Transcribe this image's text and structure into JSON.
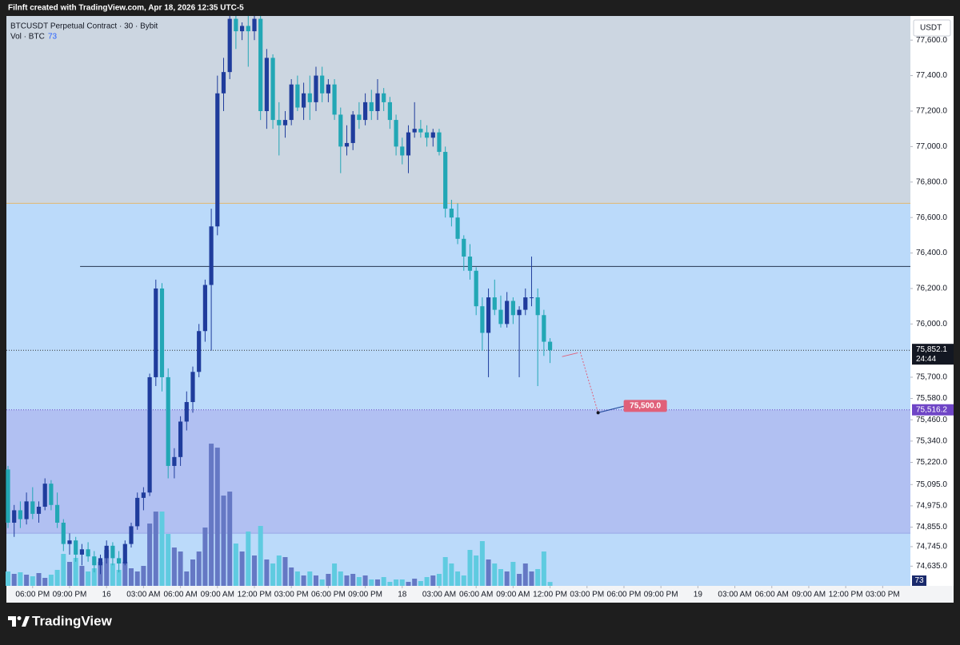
{
  "header": {
    "credit": "Filnft created with TradingView.com, Apr 18, 2026 12:35 UTC-5",
    "symbol": "BTCUSDT Perpetual Contract · 30 · Bybit",
    "volume_label": "Vol · BTC"
  },
  "chart_data": {
    "type": "candlestick",
    "open": [
      75180,
      74880,
      74950,
      74900,
      75000,
      74930,
      74970,
      75100,
      74980,
      74880,
      74760,
      74780,
      74700,
      74730,
      74690,
      74640,
      74680,
      74750,
      74680,
      74650,
      74760,
      74860,
      75020,
      75050,
      75700,
      76200,
      75700,
      75200,
      75250,
      75450,
      75560,
      75730,
      75960,
      76220,
      76550,
      77300,
      77420,
      77720,
      77650,
      77680,
      77650,
      77720,
      77200,
      77500,
      77150,
      77120,
      77150,
      77350,
      77220,
      77300,
      77250,
      77400,
      77300,
      77350,
      77180,
      77000,
      77020,
      77180,
      77150,
      77250,
      77200,
      77300,
      77250,
      77150,
      77000,
      76950,
      77080,
      77100,
      77080,
      77050,
      77080,
      76970,
      76650,
      76600,
      76480,
      76380,
      76300,
      76100,
      75950,
      76150,
      76080,
      76000,
      76130,
      76050,
      76080,
      76150,
      76150,
      76050,
      75900
    ],
    "high": [
      75200,
      74980,
      75000,
      75050,
      75080,
      75000,
      75130,
      75120,
      75050,
      74900,
      74820,
      74800,
      74760,
      74770,
      74720,
      74700,
      74780,
      74770,
      74720,
      74780,
      74880,
      75050,
      75080,
      75720,
      76250,
      76230,
      75750,
      75300,
      75480,
      75620,
      75760,
      76000,
      76250,
      76650,
      77400,
      77500,
      77750,
      77750,
      77700,
      77740,
      77750,
      77740,
      77550,
      77520,
      77250,
      77200,
      77380,
      77400,
      77360,
      77400,
      77450,
      77450,
      77380,
      77380,
      77220,
      77120,
      77200,
      77250,
      77300,
      77320,
      77380,
      77330,
      77280,
      77180,
      77050,
      77120,
      77250,
      77150,
      77120,
      77100,
      77100,
      77000,
      76700,
      76680,
      76500,
      76450,
      76320,
      76150,
      76200,
      76250,
      76160,
      76180,
      76150,
      76100,
      76200,
      76380,
      76200,
      76080,
      75920
    ],
    "low": [
      74850,
      74800,
      74850,
      74870,
      74900,
      74880,
      74950,
      74950,
      74850,
      74720,
      74700,
      74660,
      74640,
      74660,
      74600,
      74590,
      74650,
      74640,
      74600,
      74640,
      74740,
      74840,
      74950,
      75030,
      75650,
      75620,
      75130,
      75130,
      75200,
      75400,
      75500,
      75700,
      75900,
      75850,
      76500,
      77200,
      77380,
      77550,
      77600,
      77450,
      77600,
      77150,
      77100,
      77100,
      76950,
      77050,
      77120,
      77200,
      77150,
      77150,
      77200,
      77250,
      77250,
      77150,
      76850,
      76950,
      76980,
      77100,
      77120,
      77150,
      77150,
      77200,
      77100,
      76950,
      76900,
      76850,
      77050,
      77050,
      77000,
      77000,
      76950,
      76600,
      76550,
      76450,
      76300,
      76250,
      76050,
      75850,
      75700,
      76050,
      75980,
      75980,
      76000,
      75700,
      76050,
      76100,
      75650,
      75820,
      75780
    ],
    "close": [
      74880,
      74950,
      74900,
      75000,
      74930,
      74970,
      75100,
      74980,
      74880,
      74760,
      74780,
      74700,
      74730,
      74690,
      74640,
      74680,
      74750,
      74680,
      74650,
      74760,
      74860,
      75020,
      75050,
      75700,
      76200,
      75700,
      75200,
      75250,
      75450,
      75560,
      75730,
      75960,
      76220,
      76550,
      77300,
      77420,
      77720,
      77650,
      77680,
      77650,
      77720,
      77200,
      77500,
      77150,
      77120,
      77150,
      77350,
      77220,
      77300,
      77250,
      77400,
      77300,
      77350,
      77180,
      77000,
      77020,
      77180,
      77150,
      77250,
      77200,
      77300,
      77250,
      77150,
      77000,
      76950,
      77080,
      77100,
      77080,
      77050,
      77080,
      76970,
      76650,
      76600,
      76480,
      76380,
      76300,
      76100,
      75950,
      76150,
      76080,
      76000,
      76130,
      76050,
      76080,
      76150,
      76150,
      76050,
      75900,
      75852.1
    ],
    "volume": [
      270,
      225,
      255,
      210,
      180,
      240,
      150,
      210,
      300,
      600,
      450,
      525,
      375,
      270,
      330,
      450,
      675,
      420,
      300,
      450,
      330,
      270,
      375,
      1170,
      1395,
      1395,
      975,
      720,
      645,
      270,
      495,
      645,
      1095,
      2670,
      2595,
      1695,
      1770,
      795,
      645,
      1020,
      570,
      1125,
      495,
      420,
      570,
      540,
      345,
      270,
      195,
      270,
      195,
      120,
      225,
      420,
      270,
      195,
      225,
      165,
      195,
      120,
      120,
      165,
      75,
      120,
      120,
      75,
      135,
      90,
      165,
      195,
      225,
      540,
      420,
      270,
      195,
      675,
      570,
      840,
      495,
      420,
      315,
      270,
      450,
      225,
      420,
      270,
      315,
      645,
      73
    ],
    "volume_ylim": [
      0,
      10700
    ],
    "up_color": "#1f3c9c",
    "down_color": "#22a7b5",
    "up_volume_color": "#6578c4",
    "down_volume_color": "#5fcbe0",
    "currency": "USDT",
    "ylim": [
      74524,
      77736
    ],
    "yticks": [
      {
        "value": 77600,
        "label": "77,600.0"
      },
      {
        "value": 77400,
        "label": "77,400.0"
      },
      {
        "value": 77200,
        "label": "77,200.0"
      },
      {
        "value": 77000,
        "label": "77,000.0"
      },
      {
        "value": 76800,
        "label": "76,800.0"
      },
      {
        "value": 76600,
        "label": "76,600.0"
      },
      {
        "value": 76400,
        "label": "76,400.0"
      },
      {
        "value": 76200,
        "label": "76,200.0"
      },
      {
        "value": 76000,
        "label": "76,000.0"
      },
      {
        "value": 75700,
        "label": "75,700.0"
      },
      {
        "value": 75580,
        "label": "75,580.0"
      },
      {
        "value": 75460,
        "label": "75,460.0"
      },
      {
        "value": 75340,
        "label": "75,340.0"
      },
      {
        "value": 75220,
        "label": "75,220.0"
      },
      {
        "value": 75095,
        "label": "75,095.0"
      },
      {
        "value": 74975,
        "label": "74,975.0"
      },
      {
        "value": 74855,
        "label": "74,855.0"
      },
      {
        "value": 74745,
        "label": "74,745.0"
      },
      {
        "value": 74635,
        "label": "74,635.0"
      }
    ],
    "xlim": [
      -0.26,
      146.5
    ],
    "xticks": [
      {
        "value": 4,
        "label": "06:00 PM"
      },
      {
        "value": 10,
        "label": "09:00 PM"
      },
      16,
      {
        "value": 22,
        "label": "03:00 AM"
      },
      {
        "value": 28,
        "label": "06:00 AM"
      },
      {
        "value": 34,
        "label": "09:00 AM"
      },
      {
        "value": 40,
        "label": "12:00 PM"
      },
      {
        "value": 46,
        "label": "03:00 PM"
      },
      {
        "value": 52,
        "label": "06:00 PM"
      },
      {
        "value": 58,
        "label": "09:00 PM"
      },
      {
        "value": 64,
        "label": "18"
      },
      {
        "value": 70,
        "label": "03:00 AM"
      },
      {
        "value": 76,
        "label": "06:00 AM"
      },
      {
        "value": 82,
        "label": "09:00 AM"
      },
      {
        "value": 88,
        "label": "12:00 PM"
      },
      {
        "value": 94,
        "label": "03:00 PM"
      },
      {
        "value": 100,
        "label": "06:00 PM"
      },
      {
        "value": 106,
        "label": "09:00 PM"
      },
      {
        "value": 112,
        "label": "19"
      },
      {
        "value": 118,
        "label": "03:00 AM"
      },
      {
        "value": 124,
        "label": "06:00 AM"
      },
      {
        "value": 130,
        "label": "09:00 AM"
      },
      {
        "value": 136,
        "label": "12:00 PM"
      },
      {
        "value": 142,
        "label": "03:00 PM"
      }
    ],
    "zones": [
      {
        "from": 76680,
        "to": 77736,
        "color": "#ccd6e1"
      },
      {
        "from": 74821,
        "to": 75516.2,
        "color": "#b1c0f2"
      }
    ],
    "zone_edges": [
      {
        "value": 76680,
        "color": "#e3b870"
      },
      {
        "value": 74821,
        "color": "#9aa8e6"
      }
    ],
    "lines": [
      {
        "value": 76324,
        "from": 11.7,
        "color": "#24344f"
      }
    ],
    "last_price": {
      "value": 75852.1,
      "label": "75,852.1"
    },
    "countdown": "24:44",
    "level": {
      "value": 75516.2,
      "label": "75,516.2",
      "color": "#6f45c6"
    },
    "projection": {
      "peak": {
        "x": 92.9,
        "y": 75842
      },
      "end_x": 95.8,
      "target": {
        "value": 75500,
        "label": "75,500.0"
      },
      "color": "#e0607a"
    }
  },
  "footer": {
    "brand": "TradingView"
  }
}
